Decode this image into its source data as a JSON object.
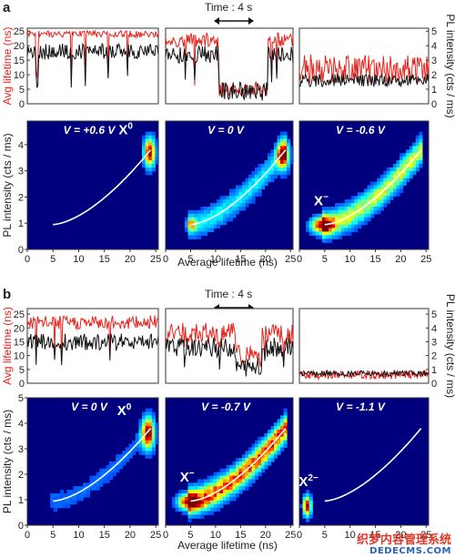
{
  "chart_data": {
    "type": "figure",
    "panels": [
      {
        "label": "a",
        "time_scale": "Time : 4 s",
        "trace_axes": {
          "left_label": "Avg lifetime (ns)",
          "left_ticks": [
            0,
            5,
            10,
            15,
            20,
            25
          ],
          "left_range": [
            0,
            26
          ],
          "right_label": "PL intensity (cts / ms)",
          "right_ticks": [
            0,
            1,
            2,
            3,
            4,
            5
          ],
          "right_range": [
            0,
            5.2
          ]
        },
        "traces": [
          {
            "lifetime_level": 24,
            "lifetime_noise": 1.2,
            "intensity_level": 3.6,
            "intensity_noise": 0.55,
            "segments": [],
            "dips": 7
          },
          {
            "lifetime_level": 22,
            "lifetime_noise": 2.5,
            "intensity_level": 3.4,
            "intensity_noise": 0.6,
            "segments": [
              {
                "start": 0.42,
                "end": 0.8,
                "lifetime": 5,
                "intensity": 0.9
              }
            ],
            "dips": 10
          },
          {
            "lifetime_level": 12,
            "lifetime_noise": 5,
            "intensity_level": 1.6,
            "intensity_noise": 0.45,
            "segments": [],
            "dips": 0
          }
        ],
        "maps": [
          {
            "annotation": "V = +0.6 V",
            "state": "X0",
            "peaks": [
              {
                "x": 23.8,
                "y": 3.7,
                "amp": 1.0,
                "sx": 0.7,
                "sy": 0.35
              }
            ],
            "ridge": 0
          },
          {
            "annotation": "V = 0 V",
            "state": "",
            "peaks": [
              {
                "x": 23.5,
                "y": 3.6,
                "amp": 0.95,
                "sx": 0.8,
                "sy": 0.35
              },
              {
                "x": 5.2,
                "y": 0.95,
                "amp": 0.5,
                "sx": 0.7,
                "sy": 0.15
              }
            ],
            "ridge": 0.28
          },
          {
            "annotation": "V = -0.6 V",
            "state": "X-",
            "peaks": [
              {
                "x": 4.5,
                "y": 0.92,
                "amp": 1.0,
                "sx": 1.4,
                "sy": 0.2
              }
            ],
            "ridge": 0.55
          }
        ],
        "map_axes": {
          "xlabel": "Average lifetime (ns)",
          "ylabel": "PL intensity (cts / ms)",
          "xticks": [
            0,
            5,
            10,
            15,
            20,
            25
          ],
          "yticks": [
            0,
            1,
            2,
            3,
            4
          ],
          "xlim": [
            0,
            25.5
          ],
          "ylim": [
            0,
            4.9
          ]
        },
        "fit_curve": {
          "x_start": 5,
          "x_end": 24,
          "y_start": 0.95,
          "y_end": 3.8
        }
      },
      {
        "label": "b",
        "time_scale": "Time : 4 s",
        "trace_axes": {
          "left_label": "Avg lifetime (ns)",
          "left_ticks": [
            0,
            5,
            10,
            15,
            20,
            25
          ],
          "left_range": [
            0,
            27
          ],
          "right_label": "PL intensity (cts / ms)",
          "right_ticks": [
            0,
            1,
            2,
            3,
            4,
            5
          ],
          "right_range": [
            0,
            5.4
          ]
        },
        "traces": [
          {
            "lifetime_level": 22,
            "lifetime_noise": 2.5,
            "intensity_level": 3.0,
            "intensity_noise": 0.6,
            "segments": [],
            "dips": 4
          },
          {
            "lifetime_level": 18,
            "lifetime_noise": 4,
            "intensity_level": 2.6,
            "intensity_noise": 0.7,
            "segments": [
              {
                "start": 0.55,
                "end": 0.75,
                "lifetime": 10,
                "intensity": 1.2
              }
            ],
            "dips": 6
          },
          {
            "lifetime_level": 3,
            "lifetime_noise": 1.5,
            "intensity_level": 0.7,
            "intensity_noise": 0.2,
            "segments": [],
            "dips": 0
          }
        ],
        "maps": [
          {
            "annotation": "V = 0 V",
            "state": "X0",
            "peaks": [
              {
                "x": 23.5,
                "y": 3.6,
                "amp": 1.0,
                "sx": 0.8,
                "sy": 0.4
              }
            ],
            "ridge": 0.1
          },
          {
            "annotation": "V = -0.7 V",
            "state": "X-",
            "peaks": [
              {
                "x": 4.5,
                "y": 0.92,
                "amp": 1.0,
                "sx": 1.3,
                "sy": 0.2
              }
            ],
            "ridge": 0.85
          },
          {
            "annotation": "V = -1.1 V",
            "state": "X2-",
            "peaks": [
              {
                "x": 1.5,
                "y": 0.75,
                "amp": 1.0,
                "sx": 0.5,
                "sy": 0.25
              }
            ],
            "ridge": 0
          }
        ],
        "map_axes": {
          "xlabel": "Average lifetime (ns)",
          "ylabel": "PL intensity (cts / ms)",
          "xticks": [
            0,
            5,
            10,
            15,
            20,
            25
          ],
          "yticks": [
            0,
            1,
            2,
            3,
            4,
            5
          ],
          "xlim": [
            0,
            25.5
          ],
          "ylim": [
            0,
            5
          ]
        },
        "fit_curve": {
          "x_start": 5,
          "x_end": 24,
          "y_start": 0.95,
          "y_end": 3.8
        }
      }
    ]
  },
  "colors": {
    "lifetime_trace": "#e8231c",
    "intensity_trace": "#111111",
    "fit_curve": "#ffffff",
    "map_background": "#00007f"
  },
  "watermark": {
    "cn": "织梦内容管理系统",
    "en": "DEDECMS.COM"
  }
}
